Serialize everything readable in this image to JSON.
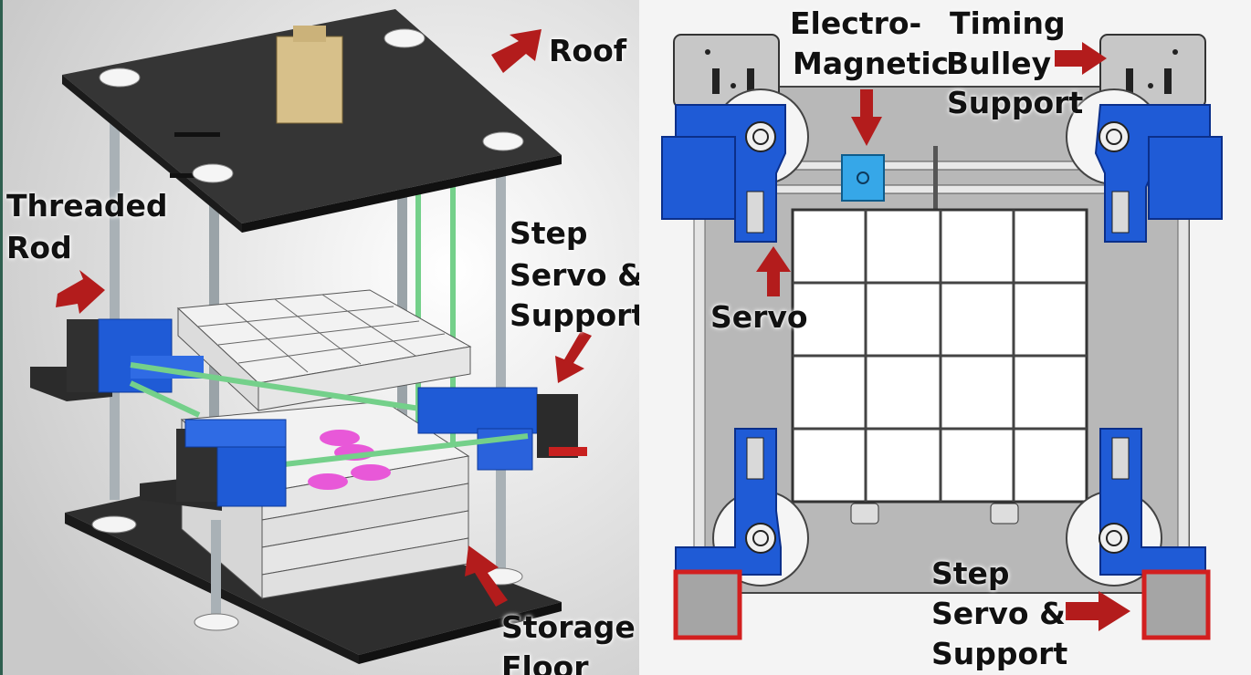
{
  "colors": {
    "arrow": "#b31c1c",
    "blue_part": "#1f5bd6",
    "board": "#333333",
    "grid_line": "#444444",
    "rod": "#9fa8ad",
    "green_rod": "#74d08a",
    "pink": "#e858d8"
  },
  "left_panel": {
    "labels": {
      "roof": "Roof",
      "threaded": "Threaded",
      "rod": "Rod",
      "step": "Step",
      "servo": "Servo &",
      "support": "Support",
      "storage": "Storage",
      "floor": "Floor"
    }
  },
  "right_panel": {
    "labels": {
      "electro": "Electro-",
      "magnetic": "Magnetic",
      "timing": "Timing",
      "bulley": "Bulley",
      "support": "Support",
      "servo": "Servo",
      "step": "Step",
      "servo_and": "Servo &",
      "support2": "Support"
    }
  }
}
